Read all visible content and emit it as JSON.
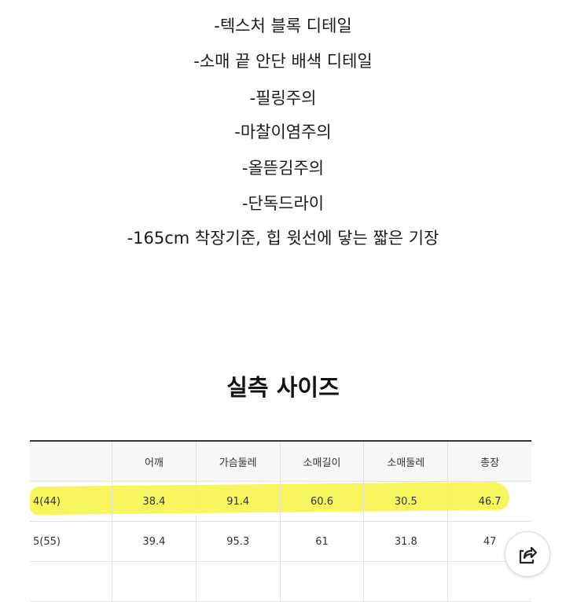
{
  "details": [
    "-텍스처 블록 디테일",
    "-소매 끝 안단 배색 디테일",
    "-필링주의",
    "-마찰이염주의",
    "-올뜯김주의",
    "-단독드라이",
    "-165cm 착장기준, 힙 윗선에 닿는 짧은 기장"
  ],
  "size_title": "실측 사이즈",
  "table": {
    "headers": [
      "",
      "어깨",
      "가슴둘레",
      "소매길이",
      "소매둘레",
      "총장"
    ],
    "rows": [
      [
        "4(44)",
        "38.4",
        "91.4",
        "60.6",
        "30.5",
        "46.7"
      ],
      [
        "5(55)",
        "39.4",
        "95.3",
        "61",
        "31.8",
        "47"
      ],
      [
        "",
        "",
        "",
        "",
        "",
        ""
      ]
    ],
    "highlight_color": "#f6f542"
  },
  "share_icon": "share-icon"
}
